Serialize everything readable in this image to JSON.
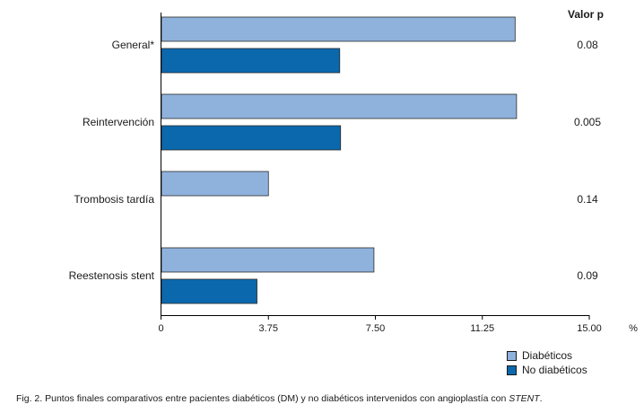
{
  "chart_data": {
    "type": "bar",
    "orientation": "horizontal",
    "categories": [
      "General*",
      "Reintervención",
      "Trombosis tardía",
      "Reestenosis stent"
    ],
    "series": [
      {
        "name": "Diabéticos",
        "color": "#8fb2dd",
        "values": [
          12.4,
          12.45,
          3.75,
          7.45
        ]
      },
      {
        "name": "No diabéticos",
        "color": "#0b68ad",
        "values": [
          6.25,
          6.28,
          null,
          3.35
        ]
      }
    ],
    "xlim": [
      0,
      15
    ],
    "xticks": [
      "0",
      "3.75",
      "7.50",
      "11.25",
      "15.00"
    ],
    "xtick_values": [
      0,
      3.75,
      7.5,
      11.25,
      15
    ],
    "x_unit": "%",
    "pvalue_header": "Valor p",
    "pvalues": [
      "0.08",
      "0.005",
      "0.14",
      "0.09"
    ],
    "legend_position": "bottom-right"
  },
  "caption": {
    "prefix": "Fig. 2.  Puntos finales comparativos entre pacientes diabéticos (DM) y no diabéticos intervenidos con angioplastía con ",
    "emphasis": "STENT",
    "suffix": "."
  }
}
